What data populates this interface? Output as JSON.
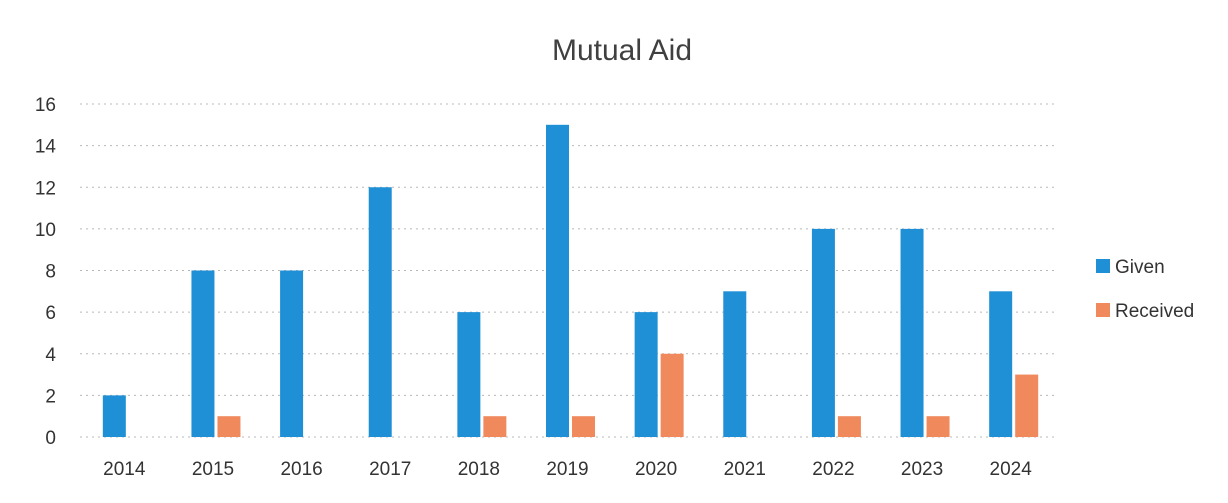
{
  "chart_data": {
    "type": "bar",
    "title": "Mutual Aid",
    "xlabel": "",
    "ylabel": "",
    "categories": [
      "2014",
      "2015",
      "2016",
      "2017",
      "2018",
      "2019",
      "2020",
      "2021",
      "2022",
      "2023",
      "2024"
    ],
    "series": [
      {
        "name": "Given",
        "color": "#1f8fd6",
        "values": [
          2,
          8,
          8,
          12,
          6,
          15,
          6,
          7,
          10,
          10,
          7
        ]
      },
      {
        "name": "Received",
        "color": "#f08a5d",
        "values": [
          0,
          1,
          0,
          0,
          1,
          1,
          4,
          0,
          1,
          1,
          3
        ]
      }
    ],
    "ylim": [
      0,
      16
    ],
    "yticks": [
      "0",
      "2",
      "4",
      "6",
      "8",
      "10",
      "12",
      "14",
      "16"
    ],
    "grid": true,
    "legend_position": "right"
  }
}
